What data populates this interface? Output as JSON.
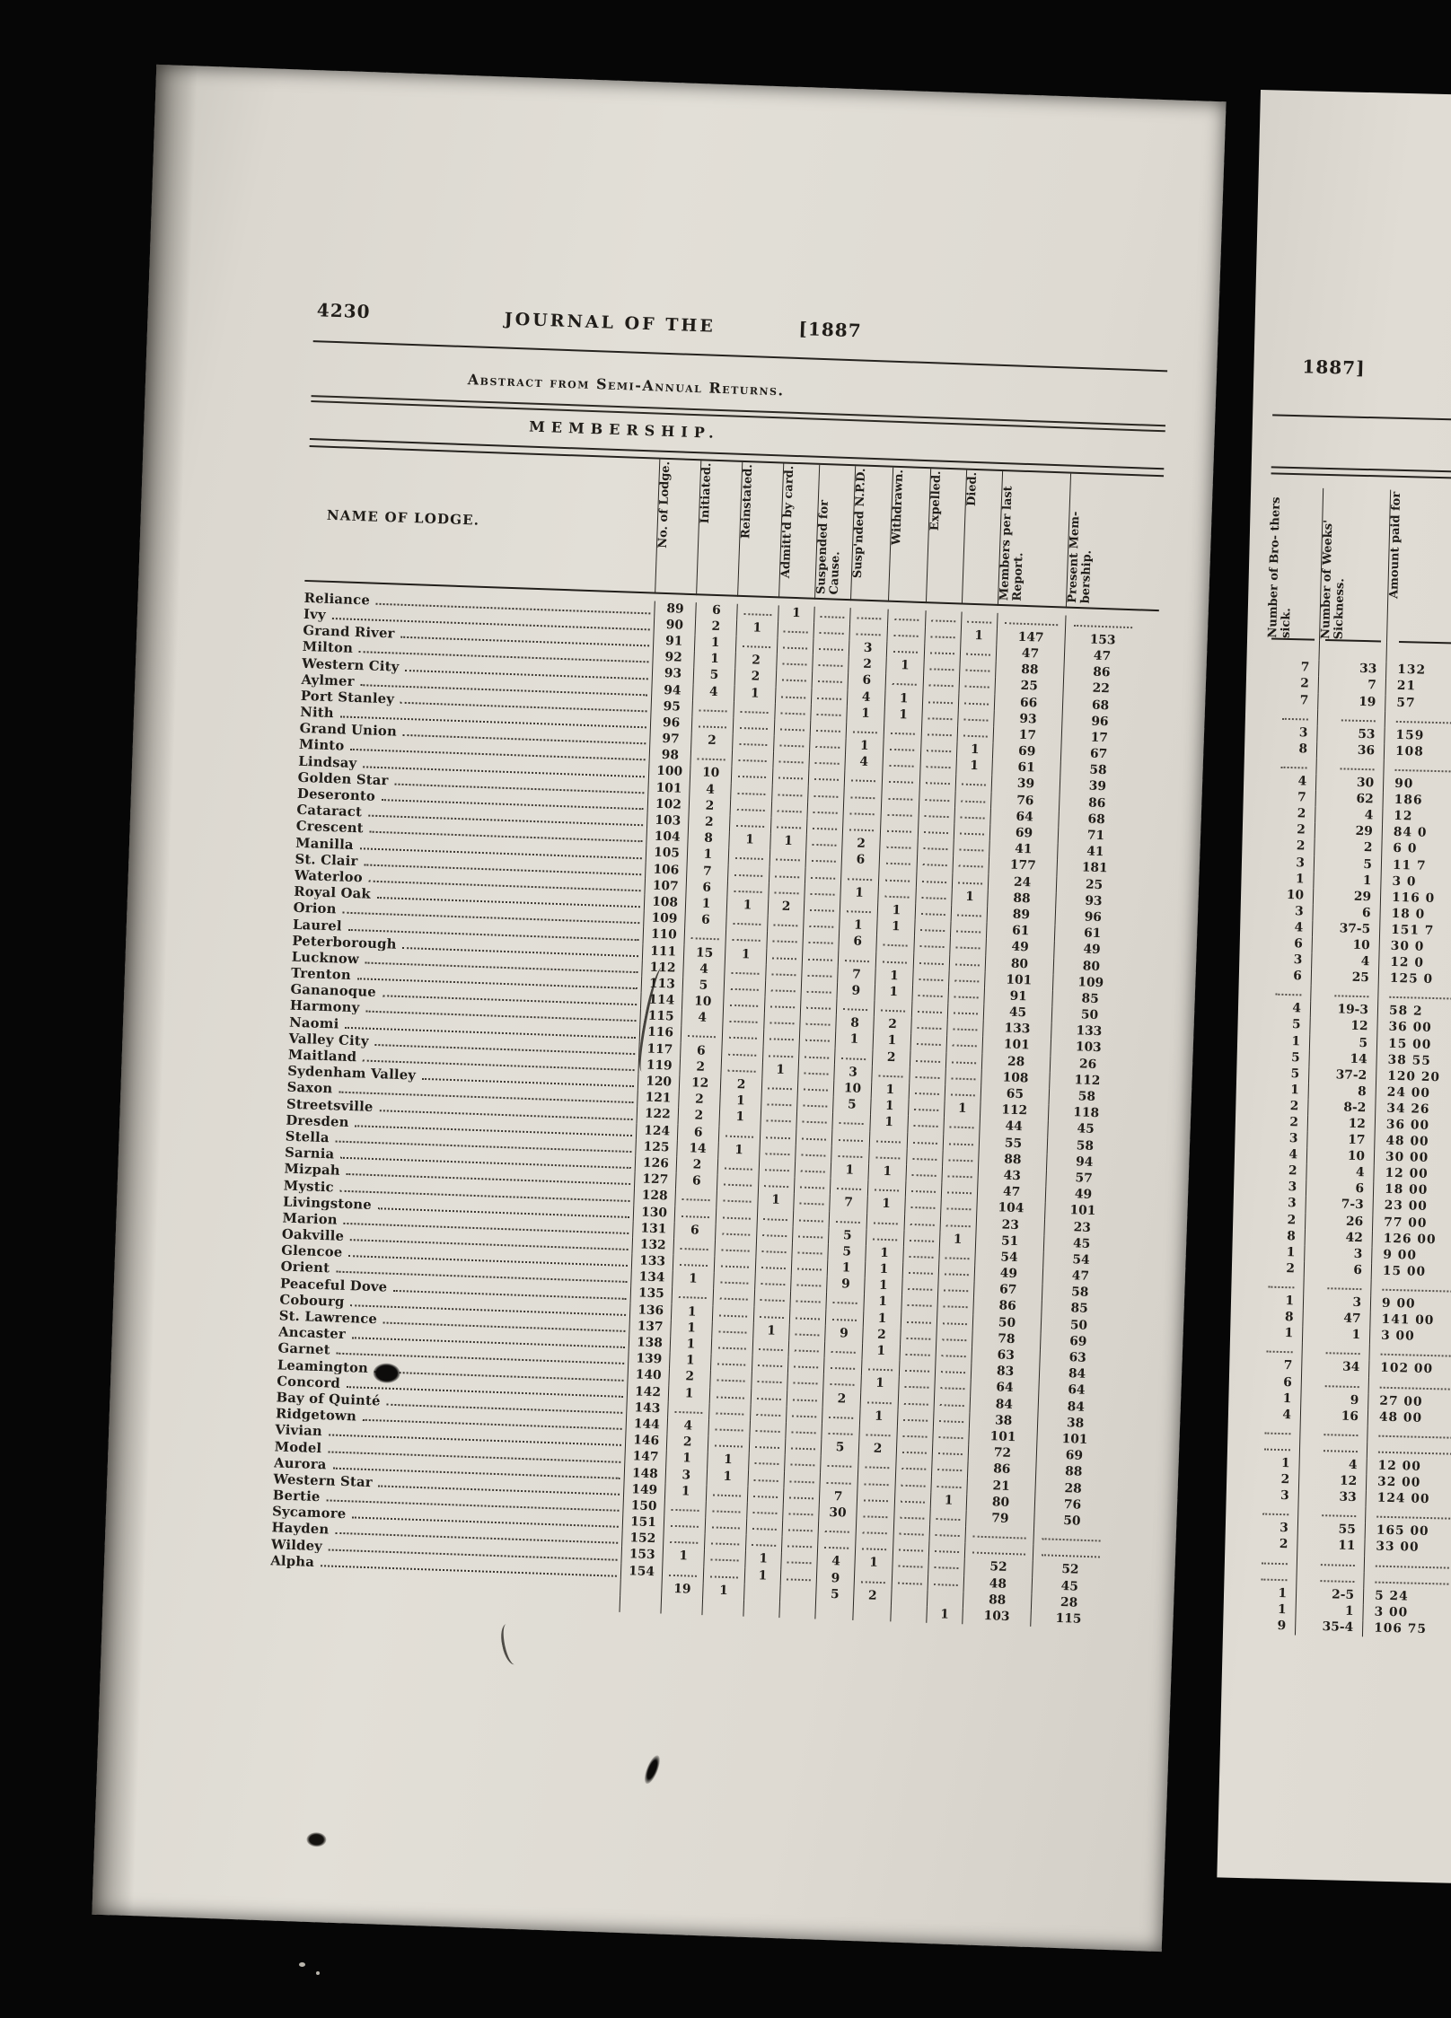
{
  "masthead": {
    "page_number": "4230",
    "journal_title": "JOURNAL OF THE",
    "year_left": "[1887",
    "year_right": "1887]"
  },
  "table": {
    "title": "Abstract from Semi-Annual Returns.",
    "subtitle": "MEMBERSHIP.",
    "columns": [
      "NAME OF LODGE.",
      "No. of Lodge.",
      "Initiated.",
      "Reinstated.",
      "Admitt'd by card.",
      "Suspended for Cause.",
      "Susp'nded N.P.D.",
      "Withdrawn.",
      "Expelled.",
      "Died.",
      "Members per last Report.",
      "Present Mem- bership."
    ],
    "rows": [
      [
        "Reliance",
        "89",
        "6",
        "",
        "1",
        "",
        "",
        "",
        "",
        "",
        "",
        ""
      ],
      [
        "Ivy",
        "90",
        "2",
        "1",
        "",
        "",
        "",
        "",
        "",
        "1",
        "147",
        "153"
      ],
      [
        "Grand River",
        "91",
        "1",
        "",
        "",
        "",
        "3",
        "",
        "",
        "",
        "47",
        "47"
      ],
      [
        "Milton",
        "92",
        "1",
        "2",
        "",
        "",
        "2",
        "1",
        "",
        "",
        "88",
        "86"
      ],
      [
        "Western City",
        "93",
        "5",
        "2",
        "",
        "",
        "6",
        "",
        "",
        "",
        "25",
        "22"
      ],
      [
        "Aylmer",
        "94",
        "4",
        "1",
        "",
        "",
        "4",
        "1",
        "",
        "",
        "66",
        "68"
      ],
      [
        "Port Stanley",
        "95",
        "",
        "",
        "",
        "",
        "1",
        "1",
        "",
        "",
        "93",
        "96"
      ],
      [
        "Nith",
        "96",
        "",
        "",
        "",
        "",
        "",
        "",
        "",
        "",
        "17",
        "17"
      ],
      [
        "Grand Union",
        "97",
        "2",
        "",
        "",
        "",
        "1",
        "",
        "",
        "1",
        "69",
        "67"
      ],
      [
        "Minto",
        "98",
        "",
        "",
        "",
        "",
        "4",
        "",
        "",
        "1",
        "61",
        "58"
      ],
      [
        "Lindsay",
        "100",
        "10",
        "",
        "",
        "",
        "",
        "",
        "",
        "",
        "39",
        "39"
      ],
      [
        "Golden Star",
        "101",
        "4",
        "",
        "",
        "",
        "",
        "",
        "",
        "",
        "76",
        "86"
      ],
      [
        "Deseronto",
        "102",
        "2",
        "",
        "",
        "",
        "",
        "",
        "",
        "",
        "64",
        "68"
      ],
      [
        "Cataract",
        "103",
        "2",
        "",
        "",
        "",
        "",
        "",
        "",
        "",
        "69",
        "71"
      ],
      [
        "Crescent",
        "104",
        "8",
        "1",
        "1",
        "",
        "2",
        "",
        "",
        "",
        "41",
        "41"
      ],
      [
        "Manilla",
        "105",
        "1",
        "",
        "",
        "",
        "6",
        "",
        "",
        "",
        "177",
        "181"
      ],
      [
        "St. Clair",
        "106",
        "7",
        "",
        "",
        "",
        "",
        "",
        "",
        "",
        "24",
        "25"
      ],
      [
        "Waterloo",
        "107",
        "6",
        "",
        "",
        "",
        "1",
        "",
        "",
        "1",
        "88",
        "93"
      ],
      [
        "Royal Oak",
        "108",
        "1",
        "1",
        "2",
        "",
        "",
        "1",
        "",
        "",
        "89",
        "96"
      ],
      [
        "Orion",
        "109",
        "6",
        "",
        "",
        "",
        "1",
        "1",
        "",
        "",
        "61",
        "61"
      ],
      [
        "Laurel",
        "110",
        "",
        "",
        "",
        "",
        "6",
        "",
        "",
        "",
        "49",
        "49"
      ],
      [
        "Peterborough",
        "111",
        "15",
        "1",
        "",
        "",
        "",
        "",
        "",
        "",
        "80",
        "80"
      ],
      [
        "Lucknow",
        "112",
        "4",
        "",
        "",
        "",
        "7",
        "1",
        "",
        "",
        "101",
        "109"
      ],
      [
        "Trenton",
        "113",
        "5",
        "",
        "",
        "",
        "9",
        "1",
        "",
        "",
        "91",
        "85"
      ],
      [
        "Gananoque",
        "114",
        "10",
        "",
        "",
        "",
        "",
        "",
        "",
        "",
        "45",
        "50"
      ],
      [
        "Harmony",
        "115",
        "4",
        "",
        "",
        "",
        "8",
        "2",
        "",
        "",
        "133",
        "133"
      ],
      [
        "Naomi",
        "116",
        "",
        "",
        "",
        "",
        "1",
        "1",
        "",
        "",
        "101",
        "103"
      ],
      [
        "Valley City",
        "117",
        "6",
        "",
        "",
        "",
        "",
        "2",
        "",
        "",
        "28",
        "26"
      ],
      [
        "Maitland",
        "119",
        "2",
        "",
        "1",
        "",
        "3",
        "",
        "",
        "",
        "108",
        "112"
      ],
      [
        "Sydenham Valley",
        "120",
        "12",
        "2",
        "",
        "",
        "10",
        "1",
        "",
        "",
        "65",
        "58"
      ],
      [
        "Saxon",
        "121",
        "2",
        "1",
        "",
        "",
        "5",
        "1",
        "",
        "1",
        "112",
        "118"
      ],
      [
        "Streetsville",
        "122",
        "2",
        "1",
        "",
        "",
        "",
        "1",
        "",
        "",
        "44",
        "45"
      ],
      [
        "Dresden",
        "124",
        "6",
        "",
        "",
        "",
        "",
        "",
        "",
        "",
        "55",
        "58"
      ],
      [
        "Stella",
        "125",
        "14",
        "1",
        "",
        "",
        "",
        "",
        "",
        "",
        "88",
        "94"
      ],
      [
        "Sarnia",
        "126",
        "2",
        "",
        "",
        "",
        "1",
        "1",
        "",
        "",
        "43",
        "57"
      ],
      [
        "Mizpah",
        "127",
        "6",
        "",
        "",
        "",
        "",
        "",
        "",
        "",
        "47",
        "49"
      ],
      [
        "Mystic",
        "128",
        "",
        "",
        "1",
        "",
        "7",
        "1",
        "",
        "",
        "104",
        "101"
      ],
      [
        "Livingstone",
        "130",
        "",
        "",
        "",
        "",
        "",
        "",
        "",
        "",
        "23",
        "23"
      ],
      [
        "Marion",
        "131",
        "6",
        "",
        "",
        "",
        "5",
        "",
        "",
        "1",
        "51",
        "45"
      ],
      [
        "Oakville",
        "132",
        "",
        "",
        "",
        "",
        "5",
        "1",
        "",
        "",
        "54",
        "54"
      ],
      [
        "Glencoe",
        "133",
        "",
        "",
        "",
        "",
        "1",
        "1",
        "",
        "",
        "49",
        "47"
      ],
      [
        "Orient",
        "134",
        "1",
        "",
        "",
        "",
        "9",
        "1",
        "",
        "",
        "67",
        "58"
      ],
      [
        "Peaceful Dove",
        "135",
        "",
        "",
        "",
        "",
        "",
        "1",
        "",
        "",
        "86",
        "85"
      ],
      [
        "Cobourg",
        "136",
        "1",
        "",
        "",
        "",
        "",
        "1",
        "",
        "",
        "50",
        "50"
      ],
      [
        "St. Lawrence",
        "137",
        "1",
        "",
        "1",
        "",
        "9",
        "2",
        "",
        "",
        "78",
        "69"
      ],
      [
        "Ancaster",
        "138",
        "1",
        "",
        "",
        "",
        "",
        "1",
        "",
        "",
        "63",
        "63"
      ],
      [
        "Garnet",
        "139",
        "1",
        "",
        "",
        "",
        "",
        "",
        "",
        "",
        "83",
        "84"
      ],
      [
        "Leamington",
        "140",
        "2",
        "",
        "",
        "",
        "",
        "1",
        "",
        "",
        "64",
        "64"
      ],
      [
        "Concord",
        "142",
        "1",
        "",
        "",
        "",
        "2",
        "",
        "",
        "",
        "84",
        "84"
      ],
      [
        "Bay of Quinté",
        "143",
        "",
        "",
        "",
        "",
        "",
        "1",
        "",
        "",
        "38",
        "38"
      ],
      [
        "Ridgetown",
        "144",
        "4",
        "",
        "",
        "",
        "",
        "",
        "",
        "",
        "101",
        "101"
      ],
      [
        "Vivian",
        "146",
        "2",
        "",
        "",
        "",
        "5",
        "2",
        "",
        "",
        "72",
        "69"
      ],
      [
        "Model",
        "147",
        "1",
        "1",
        "",
        "",
        "",
        "",
        "",
        "",
        "86",
        "88"
      ],
      [
        "Aurora",
        "148",
        "3",
        "1",
        "",
        "",
        "",
        "",
        "",
        "",
        "21",
        "28"
      ],
      [
        "Western Star",
        "149",
        "1",
        "",
        "",
        "",
        "7",
        "",
        "",
        "1",
        "80",
        "76"
      ],
      [
        "Bertie",
        "150",
        "",
        "",
        "",
        "",
        "30",
        "",
        "",
        "",
        "79",
        "50"
      ],
      [
        "Sycamore",
        "151",
        "",
        "",
        "",
        "",
        "",
        "",
        "",
        "",
        "",
        ""
      ],
      [
        "Hayden",
        "152",
        "",
        "",
        "",
        "",
        "",
        "",
        "",
        "",
        "",
        ""
      ],
      [
        "Wildey",
        "153",
        "1",
        "",
        "1",
        "",
        "4",
        "1",
        "",
        "",
        "52",
        "52"
      ],
      [
        "Alpha",
        "154",
        "",
        "",
        "1",
        "",
        "9",
        "",
        "",
        "",
        "48",
        "45"
      ],
      [
        "",
        "",
        "19",
        "1",
        "",
        "",
        "5",
        "2",
        "",
        "",
        "88",
        "28"
      ],
      [
        "",
        "",
        "",
        "",
        "",
        "",
        "",
        "",
        "",
        "1",
        "103",
        "115"
      ]
    ]
  },
  "sick_table": {
    "columns": [
      "Number of Bro- thers sick.",
      "Number of Weeks' Sickness.",
      "Amount paid for"
    ],
    "currency_symbol": "$",
    "rows": [
      [
        "7",
        "33",
        "132"
      ],
      [
        "2",
        "7",
        "21"
      ],
      [
        "7",
        "19",
        "57"
      ],
      [
        "",
        "",
        ""
      ],
      [
        "3",
        "53",
        "159"
      ],
      [
        "8",
        "36",
        "108"
      ],
      [
        "",
        "",
        ""
      ],
      [
        "4",
        "30",
        "90"
      ],
      [
        "7",
        "62",
        "186"
      ],
      [
        "2",
        "4",
        "12"
      ],
      [
        "2",
        "29",
        "84 0"
      ],
      [
        "2",
        "2",
        "6 0"
      ],
      [
        "3",
        "5",
        "11 7"
      ],
      [
        "1",
        "1",
        "3 0"
      ],
      [
        "10",
        "29",
        "116 0"
      ],
      [
        "3",
        "6",
        "18 0"
      ],
      [
        "4",
        "37-5",
        "151 7"
      ],
      [
        "6",
        "10",
        "30 0"
      ],
      [
        "3",
        "4",
        "12 0"
      ],
      [
        "6",
        "25",
        "125 0"
      ],
      [
        "",
        "",
        ""
      ],
      [
        "4",
        "19-3",
        "58 2"
      ],
      [
        "5",
        "12",
        "36 00"
      ],
      [
        "1",
        "5",
        "15 00"
      ],
      [
        "5",
        "14",
        "38 55"
      ],
      [
        "5",
        "37-2",
        "120 20"
      ],
      [
        "1",
        "8",
        "24 00"
      ],
      [
        "2",
        "8-2",
        "34 26"
      ],
      [
        "2",
        "12",
        "36 00"
      ],
      [
        "3",
        "17",
        "48 00"
      ],
      [
        "4",
        "10",
        "30 00"
      ],
      [
        "2",
        "4",
        "12 00"
      ],
      [
        "3",
        "6",
        "18 00"
      ],
      [
        "3",
        "7-3",
        "23 00"
      ],
      [
        "2",
        "26",
        "77 00"
      ],
      [
        "8",
        "42",
        "126 00"
      ],
      [
        "1",
        "3",
        "9 00"
      ],
      [
        "2",
        "6",
        "15 00"
      ],
      [
        "",
        "",
        ""
      ],
      [
        "1",
        "3",
        "9 00"
      ],
      [
        "8",
        "47",
        "141 00"
      ],
      [
        "1",
        "1",
        "3 00"
      ],
      [
        "",
        "",
        ""
      ],
      [
        "7",
        "34",
        "102 00"
      ],
      [
        "6",
        "",
        ""
      ],
      [
        "1",
        "9",
        "27 00"
      ],
      [
        "4",
        "16",
        "48 00"
      ],
      [
        "",
        "",
        ""
      ],
      [
        "",
        "",
        ""
      ],
      [
        "1",
        "4",
        "12 00"
      ],
      [
        "2",
        "12",
        "32 00"
      ],
      [
        "3",
        "33",
        "124 00"
      ],
      [
        "",
        "",
        ""
      ],
      [
        "3",
        "55",
        "165 00"
      ],
      [
        "2",
        "11",
        "33 00"
      ],
      [
        "",
        "",
        ""
      ],
      [
        "",
        "",
        ""
      ],
      [
        "1",
        "2-5",
        "5 24"
      ],
      [
        "1",
        "1",
        "3 00"
      ],
      [
        "9",
        "35-4",
        "106 75"
      ]
    ]
  }
}
